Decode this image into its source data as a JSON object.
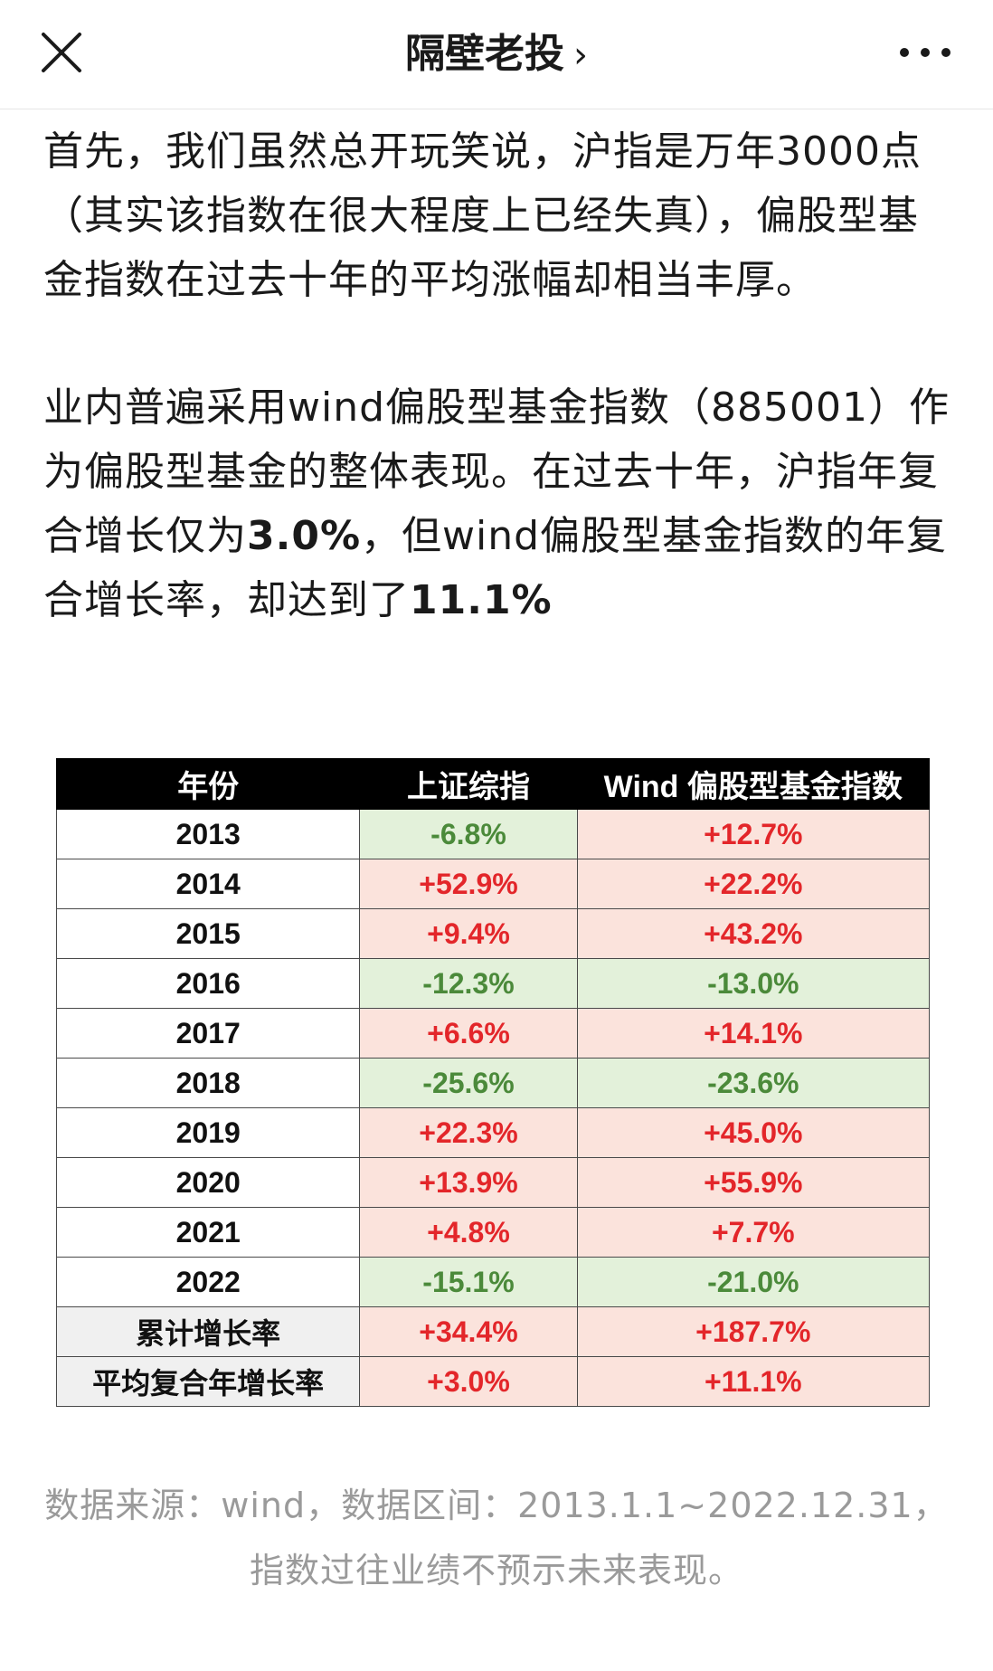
{
  "header": {
    "title": "隔壁老投",
    "chevron": "›",
    "close_icon": "close-icon",
    "more_icon": "more-icon"
  },
  "article": {
    "para1": "首先，我们虽然总开玩笑说，沪指是万年3000点（其实该指数在很大程度上已经失真），偏股型基金指数在过去十年的平均涨幅却相当丰厚。",
    "para2_a": "业内普遍采用wind偏股型基金指数（885001）作为偏股型基金的整体表现。在过去十年，沪指年复合增长仅为",
    "para2_b": "3.0%",
    "para2_c": "，但wind偏股型基金指数的年复合增长率，却达到了",
    "para2_d": "11.1%"
  },
  "table": {
    "headers": [
      "年份",
      "上证综指",
      "Wind 偏股型基金指数"
    ],
    "rows": [
      {
        "year": "2013",
        "sh": "-6.8%",
        "wind": "+12.7%"
      },
      {
        "year": "2014",
        "sh": "+52.9%",
        "wind": "+22.2%"
      },
      {
        "year": "2015",
        "sh": "+9.4%",
        "wind": "+43.2%"
      },
      {
        "year": "2016",
        "sh": "-12.3%",
        "wind": "-13.0%"
      },
      {
        "year": "2017",
        "sh": "+6.6%",
        "wind": "+14.1%"
      },
      {
        "year": "2018",
        "sh": "-25.6%",
        "wind": "-23.6%"
      },
      {
        "year": "2019",
        "sh": "+22.3%",
        "wind": "+45.0%"
      },
      {
        "year": "2020",
        "sh": "+13.9%",
        "wind": "+55.9%"
      },
      {
        "year": "2021",
        "sh": "+4.8%",
        "wind": "+7.7%"
      },
      {
        "year": "2022",
        "sh": "-15.1%",
        "wind": "-21.0%"
      }
    ],
    "summary": [
      {
        "label": "累计增长率",
        "sh": "+34.4%",
        "wind": "+187.7%"
      },
      {
        "label": "平均复合年增长率",
        "sh": "+3.0%",
        "wind": "+11.1%"
      }
    ],
    "colors": {
      "positive_bg": "#fbe3dc",
      "positive_text": "#e3262a",
      "negative_bg": "#e3f1da",
      "negative_text": "#4b8a3a"
    }
  },
  "footnote": "数据来源：wind，数据区间：2013.1.1~2022.12.31，指数过往业绩不预示未来表现。"
}
